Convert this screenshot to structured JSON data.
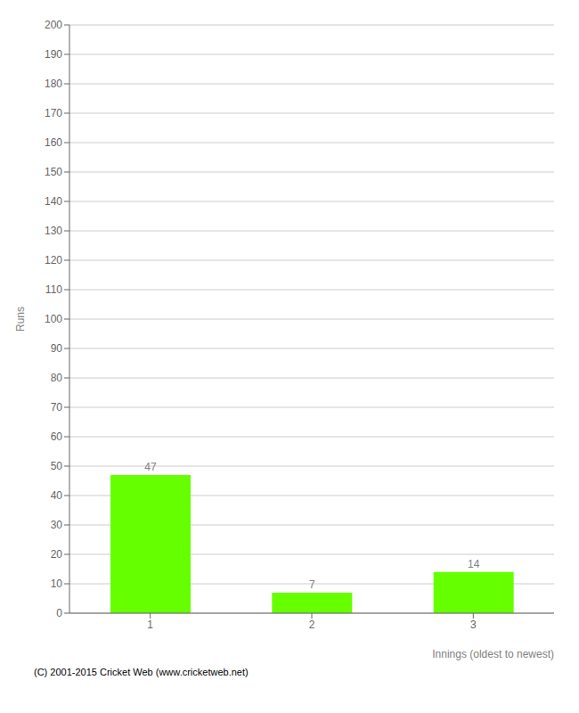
{
  "chart_data": {
    "type": "bar",
    "categories": [
      "1",
      "2",
      "3"
    ],
    "values": [
      47,
      7,
      14
    ],
    "color": "#66ff00",
    "xlabel": "Innings (oldest to newest)",
    "ylabel": "Runs",
    "ylim": [
      0,
      200
    ],
    "yticks": [
      0,
      10,
      20,
      30,
      40,
      50,
      60,
      70,
      80,
      90,
      100,
      110,
      120,
      130,
      140,
      150,
      160,
      170,
      180,
      190,
      200
    ],
    "grid": true,
    "data_labels": true,
    "annotations": [
      "(C) 2001-2015 Cricket Web (www.cricketweb.net)"
    ]
  }
}
